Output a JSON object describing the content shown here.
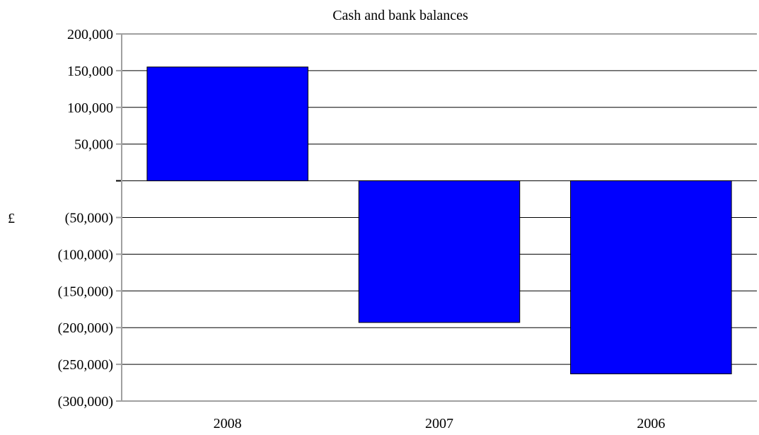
{
  "chart_data": {
    "type": "bar",
    "title": "Cash and bank balances",
    "xlabel": "",
    "ylabel": "£",
    "categories": [
      "2008",
      "2007",
      "2006"
    ],
    "values": [
      155000,
      -193000,
      -263000
    ],
    "ylim": [
      -300000,
      200000
    ],
    "yticks": [
      200000,
      150000,
      100000,
      50000,
      0,
      -50000,
      -100000,
      -150000,
      -200000,
      -250000,
      -300000
    ],
    "ytick_labels": [
      "200,000",
      "150,000",
      "100,000",
      "50,000",
      "",
      "(50,000)",
      "(100,000)",
      "(150,000)",
      "(200,000)",
      "(250,000)",
      "(300,000)"
    ],
    "grid": true,
    "legend": "none",
    "colors": {
      "bar": "#0000ff",
      "bar_border": "#000000",
      "axis": "#a0a0a0",
      "grid": "#000000"
    }
  }
}
